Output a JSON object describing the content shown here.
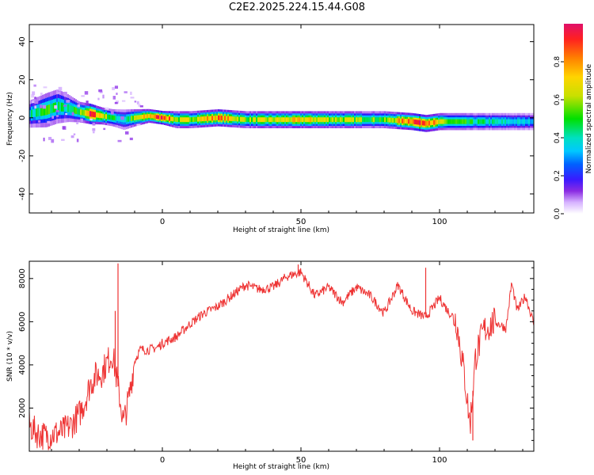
{
  "title": "C2E2.2025.224.15.44.G08",
  "chart_data": [
    {
      "type": "heatmap",
      "xlabel": "Height of straight line (km)",
      "ylabel": "Frequency (Hz)",
      "xlim": [
        -48,
        134
      ],
      "ylim": [
        -50,
        49
      ],
      "xticks": [
        0,
        50,
        100
      ],
      "yticks": [
        -40,
        -20,
        0,
        20,
        40
      ],
      "colorbar": {
        "label": "Normalized spectral amplitude",
        "range": [
          0.0,
          1.0
        ],
        "ticks": [
          "0.0",
          "0.2",
          "0.4",
          "0.6",
          "0.8"
        ],
        "colormap": [
          "#ffffff",
          "#d6b2ff",
          "#8a2be2",
          "#1a1aff",
          "#00b0ff",
          "#00e0e0",
          "#00e000",
          "#c8e000",
          "#ffd400",
          "#ff8000",
          "#ff2020",
          "#e0106a"
        ]
      },
      "ridge": {
        "x": [
          -48,
          -42,
          -38,
          -34,
          -30,
          -26,
          -22,
          -18,
          -14,
          -10,
          -5,
          0,
          5,
          10,
          20,
          30,
          40,
          50,
          60,
          70,
          80,
          90,
          95,
          100,
          110,
          120,
          134
        ],
        "frequency": [
          2,
          4,
          6,
          5,
          3,
          2,
          1,
          0,
          -1,
          0,
          1,
          0,
          -1,
          -1,
          0,
          -1,
          -1,
          -1,
          -1,
          -1,
          -1,
          -2,
          -3,
          -2,
          -2,
          -2,
          -2
        ],
        "amplitude": [
          0.45,
          0.55,
          0.5,
          0.45,
          0.55,
          0.9,
          0.7,
          0.5,
          0.45,
          0.6,
          0.75,
          0.95,
          0.6,
          0.65,
          0.8,
          0.6,
          0.65,
          0.7,
          0.65,
          0.6,
          0.55,
          0.9,
          0.95,
          0.6,
          0.5,
          0.45,
          0.4
        ],
        "halfwidth_hz": [
          4,
          5,
          5,
          4,
          3,
          3,
          2.5,
          2.5,
          3,
          2.5,
          2,
          2,
          2.5,
          2.5,
          2.5,
          2.5,
          2.5,
          2.5,
          2.5,
          2.5,
          2.5,
          2.5,
          2.5,
          2.5,
          2.5,
          2.5,
          2.5
        ]
      }
    },
    {
      "type": "line",
      "xlabel": "Height of straight line (km)",
      "ylabel": "SNR (10 * v/v)",
      "xlim": [
        -48,
        134
      ],
      "ylim": [
        0,
        8800
      ],
      "xticks": [
        0,
        50,
        100
      ],
      "yticks": [
        2000,
        4000,
        6000,
        8000
      ],
      "color": "#ee3333",
      "x": [
        -48,
        -45,
        -42,
        -39,
        -36,
        -33,
        -30,
        -28,
        -26,
        -24,
        -22,
        -20,
        -18,
        -16,
        -14,
        -12,
        -10,
        -8,
        -5,
        -2,
        0,
        5,
        10,
        15,
        20,
        25,
        30,
        35,
        40,
        45,
        50,
        55,
        60,
        65,
        70,
        75,
        80,
        85,
        90,
        95,
        100,
        103,
        106,
        109,
        111,
        113,
        116,
        120,
        124,
        126,
        128,
        131,
        134
      ],
      "values": [
        1200,
        800,
        700,
        800,
        900,
        1200,
        1700,
        2300,
        3100,
        3500,
        3600,
        4100,
        4500,
        3000,
        1300,
        2500,
        4200,
        4700,
        4700,
        4800,
        5000,
        5300,
        5900,
        6400,
        6700,
        7200,
        7700,
        7500,
        7600,
        8100,
        8300,
        7200,
        7600,
        6900,
        7600,
        7200,
        6400,
        7700,
        6500,
        6200,
        7100,
        6500,
        6100,
        3500,
        1200,
        4400,
        5600,
        6000,
        5700,
        7800,
        6500,
        7200,
        5900
      ],
      "spikes": [
        {
          "x": -16,
          "y": 8700
        },
        {
          "x": -17,
          "y": 6500
        },
        {
          "x": 49,
          "y": 8650
        },
        {
          "x": 95,
          "y": 8500
        },
        {
          "x": 112,
          "y": 500
        }
      ]
    }
  ]
}
